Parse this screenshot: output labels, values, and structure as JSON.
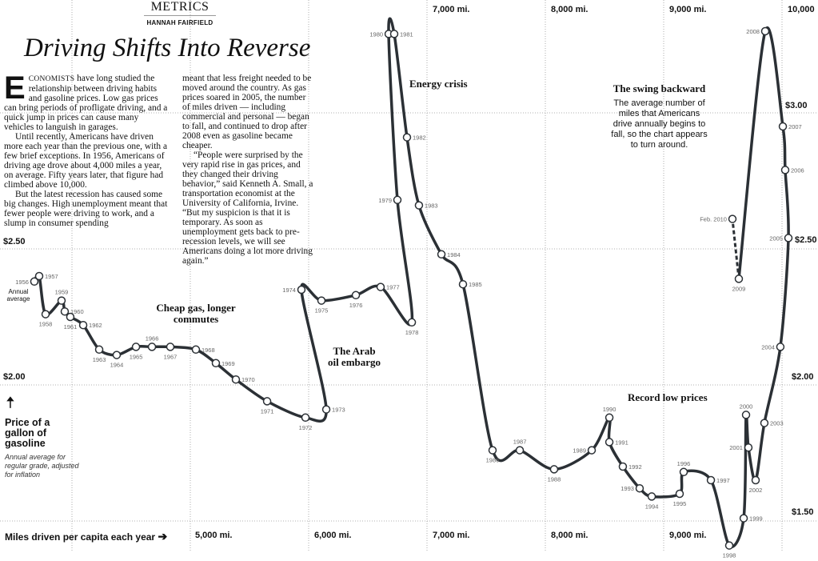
{
  "header": {
    "kicker": "METRICS",
    "byline": "HANNAH FAIRFIELD",
    "headline": "Driving Shifts Into Reverse"
  },
  "article": {
    "dropcap": "E",
    "lead_smallcaps": "CONOMISTS",
    "p1_rest": " have long studied the relationship between driving habits and gasoline prices. Low gas prices can bring periods of profligate driving, and a quick jump in prices can cause many vehicles to languish in garages.",
    "p2": "Until recently, Americans have driven more each year than the previous one, with a few brief exceptions. In 1956, Americans of driving age drove about 4,000 miles a year, on average. Fifty years later, that figure had climbed above 10,000.",
    "p3": "But the latest recession has caused some big changes. High unemployment meant that fewer people were driving to work, and a slump in consumer spending",
    "p4": "meant that less freight needed to be moved around the country. As gas prices soared in 2005, the number of miles driven — including commercial and personal — began to fall, and continued to drop after 2008 even as gasoline became cheaper.",
    "p5": "“People were surprised by the very rapid rise in gas prices, and they changed their driving behavior,” said Kenneth A. Small, a transportation economist at the University of California, Irvine. “But my suspicion is that it is temporary. As soon as unemployment gets back to pre-recession levels, we will see Americans doing a lot more driving again.”"
  },
  "annotations": {
    "annual_average": "Annual average",
    "cheap_gas": "Cheap gas, longer commutes",
    "arab_embargo": "The Arab oil embargo",
    "energy_crisis": "Energy crisis",
    "record_low": "Record low prices",
    "swing_title": "The swing backward",
    "swing_text": "The average number of miles that Americans drive annually begins to fall, so the chart appears to turn around."
  },
  "axes": {
    "y_title": "Price of a gallon of gasoline",
    "y_note": "Annual average for regular grade, adjusted for inflation",
    "x_title": "Miles driven per capita each year",
    "x_ticks": [
      "5,000 mi.",
      "6,000 mi.",
      "7,000 mi.",
      "8,000 mi.",
      "9,000 mi."
    ],
    "x_ticks_top": [
      "7,000 mi.",
      "8,000 mi.",
      "9,000 mi.",
      "10,000"
    ],
    "y_ticks": [
      "$3.00",
      "$2.50",
      "$2.00",
      "$1.50"
    ]
  },
  "colors": {
    "line": "#2b3035",
    "grid": "#999999",
    "marker_fill": "#ffffff"
  },
  "chart_data": {
    "type": "line",
    "subtype": "connected-scatter",
    "title": "Driving Shifts Into Reverse",
    "xlabel": "Miles driven per capita each year",
    "ylabel": "Price of a gallon of gasoline",
    "xlim": [
      3600,
      10300
    ],
    "ylim": [
      1.38,
      3.4
    ],
    "x_gridlines": [
      4000,
      5000,
      6000,
      7000,
      8000,
      9000,
      10000
    ],
    "y_gridlines": [
      1.5,
      2.0,
      2.5,
      3.0
    ],
    "grid": true,
    "points": [
      {
        "label": "1956",
        "x": 3682,
        "y": 2.38
      },
      {
        "label": "1957",
        "x": 3723,
        "y": 2.4
      },
      {
        "label": "1958",
        "x": 3777,
        "y": 2.26
      },
      {
        "label": "1959",
        "x": 3912,
        "y": 2.31
      },
      {
        "label": "1960",
        "x": 3939,
        "y": 2.27
      },
      {
        "label": "1961",
        "x": 3986,
        "y": 2.25
      },
      {
        "label": "1962",
        "x": 4095,
        "y": 2.22
      },
      {
        "label": "1963",
        "x": 4230,
        "y": 2.13
      },
      {
        "label": "1964",
        "x": 4378,
        "y": 2.11
      },
      {
        "label": "1965",
        "x": 4541,
        "y": 2.14
      },
      {
        "label": "1966",
        "x": 4676,
        "y": 2.14
      },
      {
        "label": "1967",
        "x": 4831,
        "y": 2.14
      },
      {
        "label": "1968",
        "x": 5047,
        "y": 2.13
      },
      {
        "label": "1969",
        "x": 5216,
        "y": 2.08
      },
      {
        "label": "1970",
        "x": 5385,
        "y": 2.02
      },
      {
        "label": "1971",
        "x": 5649,
        "y": 1.94
      },
      {
        "label": "1972",
        "x": 5973,
        "y": 1.88
      },
      {
        "label": "1973",
        "x": 6149,
        "y": 1.91
      },
      {
        "label": "1974",
        "x": 5939,
        "y": 2.35
      },
      {
        "label": "1975",
        "x": 6108,
        "y": 2.31
      },
      {
        "label": "1976",
        "x": 6399,
        "y": 2.33
      },
      {
        "label": "1977",
        "x": 6608,
        "y": 2.36
      },
      {
        "label": "1978",
        "x": 6872,
        "y": 2.23
      },
      {
        "label": "1979",
        "x": 6750,
        "y": 2.68
      },
      {
        "label": "1980",
        "x": 6676,
        "y": 3.29
      },
      {
        "label": "1981",
        "x": 6723,
        "y": 3.29
      },
      {
        "label": "1982",
        "x": 6831,
        "y": 2.91
      },
      {
        "label": "1983",
        "x": 6932,
        "y": 2.66
      },
      {
        "label": "1984",
        "x": 7122,
        "y": 2.48
      },
      {
        "label": "1985",
        "x": 7304,
        "y": 2.37
      },
      {
        "label": "1986",
        "x": 7554,
        "y": 1.76
      },
      {
        "label": "1987",
        "x": 7784,
        "y": 1.76
      },
      {
        "label": "1988",
        "x": 8074,
        "y": 1.69
      },
      {
        "label": "1989",
        "x": 8392,
        "y": 1.76
      },
      {
        "label": "1990",
        "x": 8541,
        "y": 1.88
      },
      {
        "label": "1991",
        "x": 8541,
        "y": 1.79
      },
      {
        "label": "1992",
        "x": 8655,
        "y": 1.7
      },
      {
        "label": "1993",
        "x": 8797,
        "y": 1.62
      },
      {
        "label": "1994",
        "x": 8899,
        "y": 1.59
      },
      {
        "label": "1995",
        "x": 9135,
        "y": 1.6
      },
      {
        "label": "1996",
        "x": 9169,
        "y": 1.68
      },
      {
        "label": "1997",
        "x": 9399,
        "y": 1.65
      },
      {
        "label": "1998",
        "x": 9554,
        "y": 1.41
      },
      {
        "label": "1999",
        "x": 9676,
        "y": 1.51
      },
      {
        "label": "2000",
        "x": 9696,
        "y": 1.89
      },
      {
        "label": "2001",
        "x": 9716,
        "y": 1.77
      },
      {
        "label": "2002",
        "x": 9777,
        "y": 1.65
      },
      {
        "label": "2003",
        "x": 9851,
        "y": 1.86
      },
      {
        "label": "2004",
        "x": 9986,
        "y": 2.14
      },
      {
        "label": "2005",
        "x": 10054,
        "y": 2.54
      },
      {
        "label": "2006",
        "x": 10027,
        "y": 2.79
      },
      {
        "label": "2007",
        "x": 10007,
        "y": 2.95
      },
      {
        "label": "2008",
        "x": 9858,
        "y": 3.3
      },
      {
        "label": "2009",
        "x": 9635,
        "y": 2.39
      }
    ],
    "provisional_point": {
      "label": "Feb. 2010",
      "x": 9581,
      "y": 2.61
    }
  }
}
